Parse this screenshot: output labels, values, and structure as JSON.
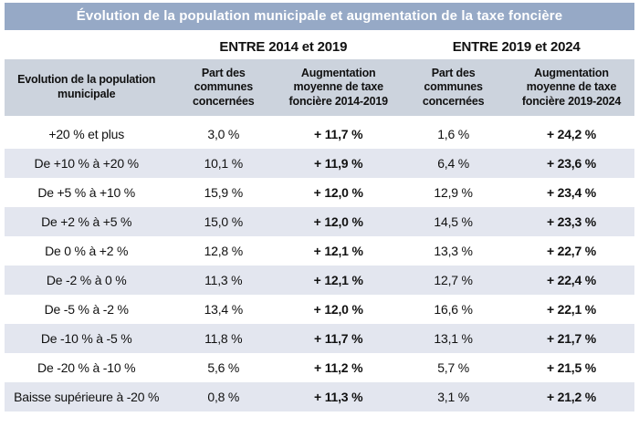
{
  "title": "Évolution de la population municipale et augmentation de la taxe foncière",
  "colors": {
    "title_bg": "#96a9c6",
    "header_bg": "#ccd3dd",
    "row_alt_bg": "#e3e6ef",
    "title_text": "#ffffff",
    "text": "#111111"
  },
  "group_headers": [
    "ENTRE 2014 et 2019",
    "ENTRE 2019 et 2024"
  ],
  "table": {
    "columns": [
      "Evolution de la population municipale",
      "Part des communes concernées",
      "Augmentation moyenne de taxe foncière 2014-2019",
      "Part des communes concernées",
      "Augmentation moyenne de taxe foncière 2019-2024"
    ],
    "rows": [
      [
        "+20 % et plus",
        "3,0 %",
        "+ 11,7 %",
        "1,6 %",
        "+ 24,2 %"
      ],
      [
        "De +10 % à +20 %",
        "10,1 %",
        "+ 11,9 %",
        "6,4 %",
        "+ 23,6 %"
      ],
      [
        "De +5 % à +10 %",
        "15,9 %",
        "+ 12,0 %",
        "12,9 %",
        "+ 23,4 %"
      ],
      [
        "De +2 % à +5 %",
        "15,0 %",
        "+ 12,0 %",
        "14,5 %",
        "+ 23,3 %"
      ],
      [
        "De 0 % à +2 %",
        "12,8 %",
        "+ 12,1 %",
        "13,3 %",
        "+ 22,7 %"
      ],
      [
        "De -2 % à 0 %",
        "11,3 %",
        "+ 12,1 %",
        "12,7 %",
        "+ 22,4 %"
      ],
      [
        "De -5 % à -2 %",
        "13,4 %",
        "+ 12,0 %",
        "16,6 %",
        "+ 22,1 %"
      ],
      [
        "De -10 % à -5 %",
        "11,8 %",
        "+ 11,7 %",
        "13,1 %",
        "+ 21,7 %"
      ],
      [
        "De -20 % à -10 %",
        "5,6 %",
        "+ 11,2 %",
        "5,7 %",
        "+ 21,5 %"
      ],
      [
        "Baisse supérieure à -20 %",
        "0,8 %",
        "+ 11,3 %",
        "3,1 %",
        "+ 21,2 %"
      ]
    ]
  },
  "chart_data": {
    "type": "table",
    "title": "Évolution de la population municipale et augmentation de la taxe foncière",
    "categories": [
      "+20 % et plus",
      "De +10 % à +20 %",
      "De +5 % à +10 %",
      "De +2 % à +5 %",
      "De 0 % à +2 %",
      "De -2 % à 0 %",
      "De -5 % à -2 %",
      "De -10 % à -5 %",
      "De -20 % à -10 %",
      "Baisse supérieure à -20 %"
    ],
    "series": [
      {
        "name": "Part des communes concernées (ENTRE 2014 et 2019), %",
        "values": [
          3.0,
          10.1,
          15.9,
          15.0,
          12.8,
          11.3,
          13.4,
          11.8,
          5.6,
          0.8
        ]
      },
      {
        "name": "Augmentation moyenne de taxe foncière 2014-2019, %",
        "values": [
          11.7,
          11.9,
          12.0,
          12.0,
          12.1,
          12.1,
          12.0,
          11.7,
          11.2,
          11.3
        ]
      },
      {
        "name": "Part des communes concernées (ENTRE 2019 et 2024), %",
        "values": [
          1.6,
          6.4,
          12.9,
          14.5,
          13.3,
          12.7,
          16.6,
          13.1,
          5.7,
          3.1
        ]
      },
      {
        "name": "Augmentation moyenne de taxe foncière 2019-2024, %",
        "values": [
          24.2,
          23.6,
          23.4,
          23.3,
          22.7,
          22.4,
          22.1,
          21.7,
          21.5,
          21.2
        ]
      }
    ],
    "units": "%"
  }
}
